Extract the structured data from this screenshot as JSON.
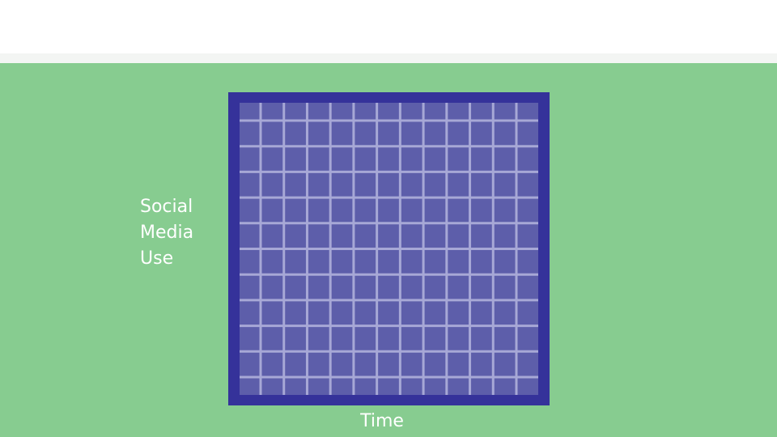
{
  "diagram": {
    "y_label_lines": [
      "Social",
      "Media",
      "Use"
    ],
    "x_label": "Time",
    "grid": {
      "columns": 13,
      "rows": 12
    }
  },
  "colors": {
    "background": "#87cc90",
    "top_band": "#ffffff",
    "frame": "#35329a",
    "grid_fill": "#5d5eaa",
    "grid_lines": "#a7a8d6",
    "label_text": "#ffffff"
  }
}
